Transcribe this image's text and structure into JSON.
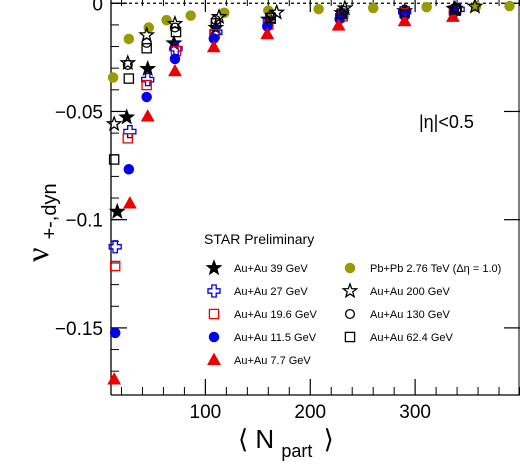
{
  "chart_data": {
    "type": "scatter",
    "title": "",
    "xlabel": "⟨ N",
    "xlabel_sub": "part",
    "xlabel_close": "⟩",
    "ylabel": "ν",
    "ylabel_sub": "+-,dyn",
    "xlim": [
      10,
      400
    ],
    "ylim": [
      -0.181,
      0.0015
    ],
    "x_ticks": [
      100,
      200,
      300
    ],
    "y_ticks": [
      0,
      -0.05,
      -0.1,
      -0.15
    ],
    "y_tick_labels": [
      "0",
      "−0.05",
      "−0.1",
      "−0.15"
    ],
    "reference_line_y": 0,
    "annotation": "|η|<0.5",
    "legend_title": "STAR Preliminary",
    "legend_placement": "bottom-center",
    "series": [
      {
        "name": "Au+Au 39 GeV",
        "marker": "star",
        "fill": true,
        "color": "#000000",
        "x": [
          16,
          25,
          45,
          70,
          110,
          160,
          230,
          290,
          337
        ],
        "y": [
          -0.0963,
          -0.0527,
          -0.0303,
          -0.0185,
          -0.0113,
          -0.0075,
          -0.0045,
          -0.0036,
          -0.0026
        ]
      },
      {
        "name": "Au+Au 27 GeV",
        "marker": "cross",
        "fill": false,
        "color": "#0000ee",
        "x": [
          14,
          28,
          45,
          72,
          110,
          161,
          230,
          290,
          341
        ],
        "y": [
          -0.1125,
          -0.0593,
          -0.0353,
          -0.021,
          -0.0134,
          -0.0083,
          -0.0058,
          -0.0038,
          -0.0028
        ]
      },
      {
        "name": "Au+Au 19.6 GeV",
        "marker": "square",
        "fill": false,
        "color": "#ee0000",
        "x": [
          14,
          26,
          44,
          72,
          109,
          160,
          231,
          290,
          337
        ],
        "y": [
          -0.1214,
          -0.0624,
          -0.0378,
          -0.0221,
          -0.0143,
          -0.0098,
          -0.006,
          -0.0046,
          -0.0033
        ]
      },
      {
        "name": "Au+Au 11.5 GeV",
        "marker": "circle",
        "fill": true,
        "color": "#0000ee",
        "x": [
          14,
          27,
          44,
          71,
          108,
          159,
          228,
          290,
          337
        ],
        "y": [
          -0.1523,
          -0.0767,
          -0.0433,
          -0.0257,
          -0.0163,
          -0.0107,
          -0.0073,
          -0.0058,
          -0.0043
        ]
      },
      {
        "name": "Au+Au 7.7 GeV",
        "marker": "triangle",
        "fill": true,
        "color": "#ee0000",
        "x": [
          13,
          28,
          45,
          71,
          108,
          159,
          227,
          290,
          336
        ],
        "y": [
          -0.1738,
          -0.0925,
          -0.0523,
          -0.0314,
          -0.0203,
          -0.0143,
          -0.0103,
          -0.0083,
          -0.0063
        ]
      },
      {
        "name": "Pb+Pb 2.76 TeV (Δη = 1.0)",
        "marker": "circle",
        "fill": true,
        "color": "#999900",
        "x": [
          12,
          27,
          46,
          63,
          86,
          118,
          160,
          208,
          260,
          311,
          358,
          390
        ],
        "y": [
          -0.0343,
          -0.0165,
          -0.0112,
          -0.0078,
          -0.0057,
          -0.0044,
          -0.0034,
          -0.0027,
          -0.0022,
          -0.0018,
          -0.0015,
          -0.0013
        ]
      },
      {
        "name": "Au+Au 200 GeV",
        "marker": "star",
        "fill": false,
        "color": "#000000",
        "x": [
          13,
          26,
          44,
          71,
          113,
          168,
          233,
          338,
          357
        ],
        "y": [
          -0.0558,
          -0.0276,
          -0.0147,
          -0.0095,
          -0.0063,
          -0.0043,
          -0.0023,
          -0.0025,
          -0.0015
        ]
      },
      {
        "name": "Au+Au 130 GeV",
        "marker": "circle",
        "fill": false,
        "color": "#000000",
        "x": [
          26,
          44,
          71,
          110,
          163,
          232,
          340
        ],
        "y": [
          -0.0285,
          -0.0183,
          -0.0112,
          -0.0078,
          -0.0058,
          -0.0035,
          -0.0028
        ]
      },
      {
        "name": "Au+Au 62.4 GeV",
        "marker": "square",
        "fill": false,
        "color": "#000000",
        "x": [
          13,
          27,
          44,
          72,
          110,
          162,
          230,
          290,
          339
        ],
        "y": [
          -0.0722,
          -0.0348,
          -0.0208,
          -0.0133,
          -0.0093,
          -0.0068,
          -0.0048,
          -0.0038,
          -0.0028
        ]
      }
    ]
  }
}
